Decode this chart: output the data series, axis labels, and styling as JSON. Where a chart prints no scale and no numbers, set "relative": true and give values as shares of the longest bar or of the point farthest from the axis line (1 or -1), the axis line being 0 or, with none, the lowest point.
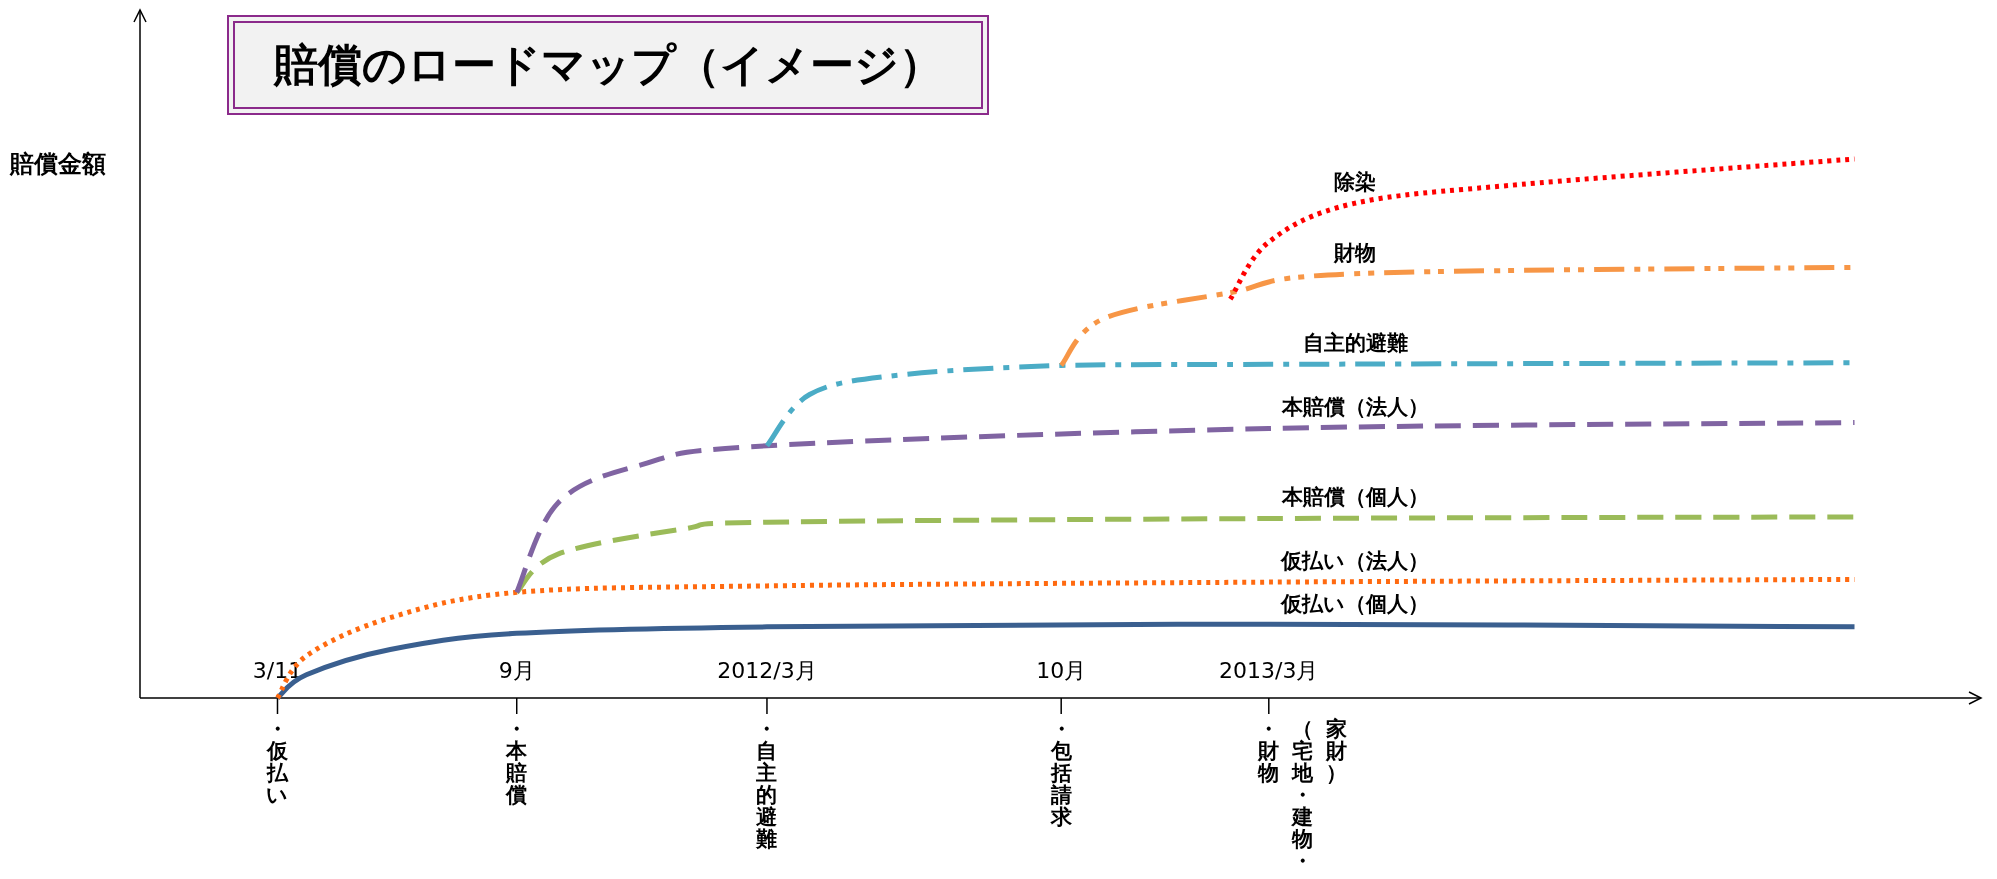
{
  "chart_data": {
    "type": "line",
    "title": "賠償のロードマップ（イメージ）",
    "ylabel": "賠償金額",
    "relative": true,
    "grid": false,
    "xlim": [
      "2010-12",
      "2014-08"
    ],
    "xticks": [
      {
        "value": "2011-03-11",
        "label": "3/11"
      },
      {
        "value": "2011-09",
        "label": "9月"
      },
      {
        "value": "2012-03",
        "label": "2012/3月"
      },
      {
        "value": "2012-10",
        "label": "10月"
      },
      {
        "value": "2013-03",
        "label": "2013/3月"
      }
    ],
    "series": [
      {
        "name": "仮払い（個人）",
        "color": "#3a5f8f",
        "line_style": "solid",
        "x": [
          "2011-03-11",
          "2011-04",
          "2011-06",
          "2011-09",
          "2012-03",
          "2013-03",
          "2014-05"
        ],
        "values": [
          0,
          0.043,
          0.09,
          0.12,
          0.132,
          0.137,
          0.132
        ]
      },
      {
        "name": "仮払い（法人）",
        "color": "#ff6a10",
        "line_style": "dotted",
        "x": [
          "2011-03-11",
          "2011-04",
          "2011-06",
          "2011-09",
          "2012-03",
          "2013-03",
          "2014-05"
        ],
        "values": [
          0,
          0.078,
          0.149,
          0.196,
          0.208,
          0.215,
          0.22
        ]
      },
      {
        "name": "本賠償（個人）",
        "color": "#9bbb59",
        "line_style": "dashed",
        "x": [
          "2011-09",
          "2011-10",
          "2012-01",
          "2012-03",
          "2013-03",
          "2014-05"
        ],
        "values": [
          0.196,
          0.267,
          0.314,
          0.326,
          0.333,
          0.336
        ]
      },
      {
        "name": "本賠償（法人）",
        "color": "#8064a2",
        "line_style": "dashed",
        "x": [
          "2011-09",
          "2011-10",
          "2011-12",
          "2012-03",
          "2013-03",
          "2014-05"
        ],
        "values": [
          0.196,
          0.362,
          0.433,
          0.468,
          0.5,
          0.511
        ]
      },
      {
        "name": "自主的避難",
        "color": "#4bacc6",
        "line_style": "dashdot",
        "x": [
          "2012-03",
          "2012-04",
          "2012-06",
          "2012-10",
          "2013-03",
          "2014-05"
        ],
        "values": [
          0.468,
          0.563,
          0.598,
          0.617,
          0.619,
          0.622
        ]
      },
      {
        "name": "財物",
        "color": "#f79646",
        "line_style": "dashdotdot",
        "x": [
          "2012-10",
          "2012-11",
          "2013-02",
          "2013-05",
          "2014-05"
        ],
        "values": [
          0.617,
          0.704,
          0.752,
          0.787,
          0.799
        ]
      },
      {
        "name": "除染",
        "color": "#ff0000",
        "line_style": "dotted",
        "x": [
          "2013-02",
          "2013-03",
          "2013-05",
          "2013-09",
          "2014-05"
        ],
        "values": [
          0.74,
          0.846,
          0.917,
          0.953,
          1
        ]
      }
    ],
    "annotations": [
      {
        "text": "・仮払い",
        "x": "2011-03-11"
      },
      {
        "text": "・本賠償",
        "x": "2011-09"
      },
      {
        "text": "・自主的避難",
        "x": "2012-03"
      },
      {
        "text": "・包括請求",
        "x": "2012-10"
      },
      {
        "text": "・財物",
        "x": "2013-03"
      },
      "（宅地・建物・",
      "家財）"
    ]
  }
}
